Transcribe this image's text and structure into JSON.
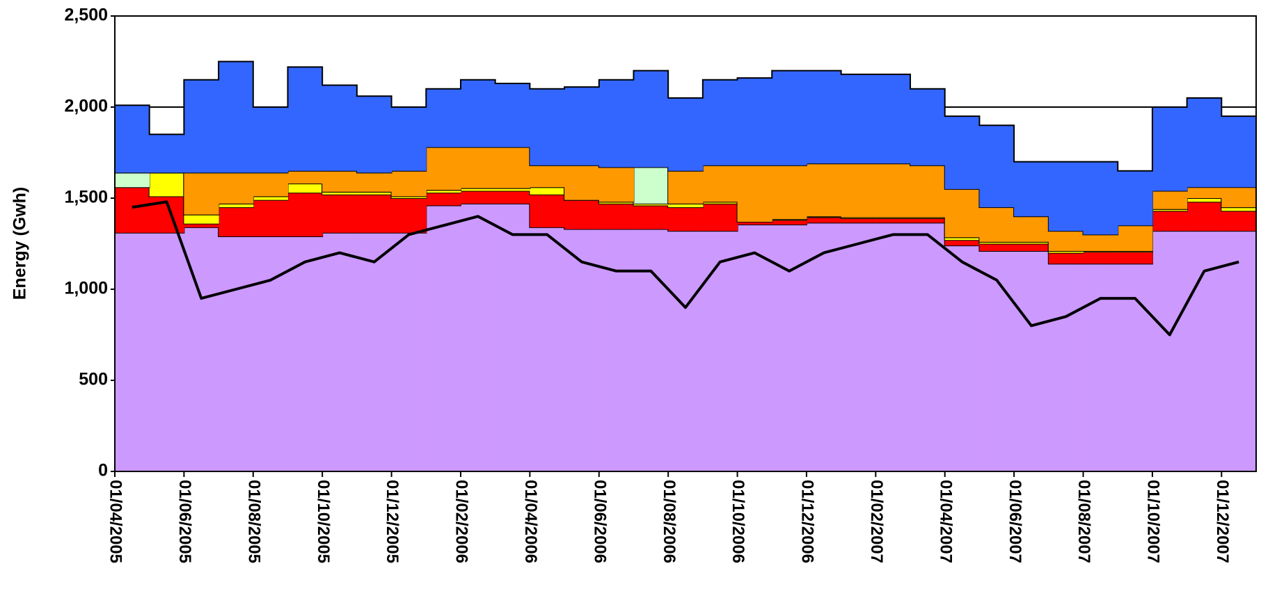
{
  "chart_data": {
    "type": "stacked_step_area",
    "y_label": "Energy (Gwh)",
    "categories": [
      "01/04/2005",
      null,
      "01/06/2005",
      null,
      "01/08/2005",
      null,
      "01/10/2005",
      null,
      "01/12/2005",
      null,
      "01/02/2006",
      null,
      "01/04/2006",
      null,
      "01/06/2006",
      null,
      "01/08/2006",
      null,
      "01/10/2006",
      null,
      "01/12/2006",
      null,
      "01/02/2007",
      null,
      "01/04/2007",
      null,
      "01/06/2007",
      null,
      "01/08/2007",
      null,
      "01/10/2007",
      null,
      "01/12/2007"
    ],
    "series": [
      {
        "color": "#cc99ff",
        "values": [
          1310,
          1310,
          1340,
          1290,
          1290,
          1290,
          1310,
          1310,
          1310,
          1460,
          1470,
          1470,
          1340,
          1330,
          1330,
          1330,
          1320,
          1320,
          1355,
          1355,
          1365,
          1365,
          1365,
          1365,
          1240,
          1210,
          1210,
          1140,
          1140,
          1140,
          1320,
          1320,
          1320
        ]
      },
      {
        "color": "#ff0000",
        "values": [
          250,
          200,
          20,
          160,
          200,
          240,
          210,
          210,
          190,
          70,
          70,
          70,
          180,
          160,
          140,
          130,
          130,
          150,
          15,
          25,
          30,
          25,
          25,
          25,
          30,
          40,
          40,
          60,
          65,
          65,
          110,
          160,
          110
        ]
      },
      {
        "color": "#ffff00",
        "values": [
          0,
          130,
          50,
          20,
          20,
          50,
          15,
          15,
          10,
          15,
          15,
          15,
          40,
          0,
          10,
          10,
          20,
          10,
          0,
          5,
          5,
          5,
          5,
          5,
          15,
          10,
          10,
          10,
          5,
          5,
          10,
          20,
          20
        ]
      },
      {
        "color": "#ccffcc",
        "values": [
          80,
          0,
          0,
          0,
          0,
          0,
          0,
          0,
          0,
          0,
          0,
          0,
          0,
          0,
          0,
          200,
          0,
          0,
          0,
          0,
          0,
          0,
          0,
          0,
          0,
          0,
          0,
          0,
          0,
          0,
          0,
          0,
          0
        ]
      },
      {
        "color": "#ff9900",
        "values": [
          0,
          0,
          230,
          170,
          130,
          70,
          115,
          105,
          140,
          235,
          225,
          225,
          120,
          190,
          190,
          0,
          180,
          200,
          310,
          295,
          290,
          295,
          295,
          285,
          265,
          190,
          140,
          110,
          90,
          140,
          100,
          60,
          110
        ]
      },
      {
        "color": "#3366ff",
        "values": [
          370,
          210,
          510,
          610,
          360,
          570,
          470,
          420,
          350,
          320,
          370,
          350,
          420,
          430,
          480,
          530,
          400,
          470,
          480,
          520,
          510,
          490,
          490,
          420,
          400,
          450,
          300,
          380,
          400,
          300,
          460,
          490,
          390
        ]
      }
    ],
    "line": {
      "color": "#000000",
      "values": [
        1450,
        1480,
        950,
        1000,
        1050,
        1150,
        1200,
        1150,
        1300,
        1350,
        1400,
        1300,
        1300,
        1150,
        1100,
        1100,
        900,
        1150,
        1200,
        1100,
        1200,
        1250,
        1300,
        1300,
        1150,
        1050,
        800,
        850,
        950,
        950,
        750,
        1100,
        1150
      ]
    },
    "ylim": [
      0,
      2500
    ],
    "yticks": [
      {
        "value": 0,
        "label": "0"
      },
      {
        "value": 500,
        "label": "500"
      },
      {
        "value": 1000,
        "label": "1,000"
      },
      {
        "value": 1500,
        "label": "1,500"
      },
      {
        "value": 2000,
        "label": "2,000"
      },
      {
        "value": 2500,
        "label": "2,500"
      }
    ],
    "grid": true
  }
}
